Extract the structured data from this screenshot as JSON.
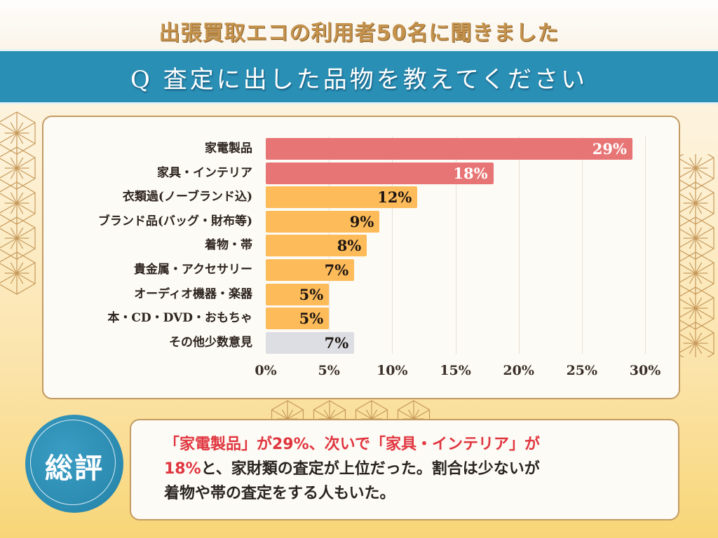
{
  "header": {
    "subtitle": "出張買取エコの利用者50名に聞きました",
    "question": "Q 査定に出した品物を教えてください"
  },
  "colors": {
    "top_bar": "#e87575",
    "mid_bar": "#fdbb5a",
    "other_bar": "#dcdee3",
    "question_band": "#2a8fb5",
    "accent_red": "#e0353f"
  },
  "chart_data": {
    "type": "bar",
    "orientation": "horizontal",
    "title": "Q 査定に出した品物を教えてください",
    "xlabel": "",
    "ylabel": "",
    "categories": [
      "家電製品",
      "家具・インテリア",
      "衣類過(ノーブランド込)",
      "ブランド品(バッグ・財布等)",
      "着物・帯",
      "貴金属・アクセサリー",
      "オーディオ機器・楽器",
      "本・CD・DVD・おもちゃ",
      "その他少数意見"
    ],
    "values": [
      29,
      18,
      12,
      9,
      8,
      7,
      5,
      5,
      7
    ],
    "value_labels": [
      "29%",
      "18%",
      "12%",
      "9%",
      "8%",
      "7%",
      "5%",
      "5%",
      "7%"
    ],
    "bar_color_groups": [
      "top",
      "top",
      "mid",
      "mid",
      "mid",
      "mid",
      "mid",
      "mid",
      "other"
    ],
    "xlim": [
      0,
      30
    ],
    "xticks": [
      0,
      5,
      10,
      15,
      20,
      25,
      30
    ],
    "xtick_labels": [
      "0%",
      "5%",
      "10%",
      "15%",
      "20%",
      "25%",
      "30%"
    ],
    "grid": true,
    "legend": "none"
  },
  "summary": {
    "badge": "総評",
    "segments": [
      {
        "text": "「家電製品」が29%、次いで「家具・インテリア」が",
        "style": "red"
      },
      {
        "text": "18%",
        "style": "red"
      },
      {
        "text": "と、家財類の査定が上位だった。割合は少ないが",
        "style": "normal"
      },
      {
        "text": "着物や帯の査定をする人もいた。",
        "style": "normal"
      }
    ]
  }
}
